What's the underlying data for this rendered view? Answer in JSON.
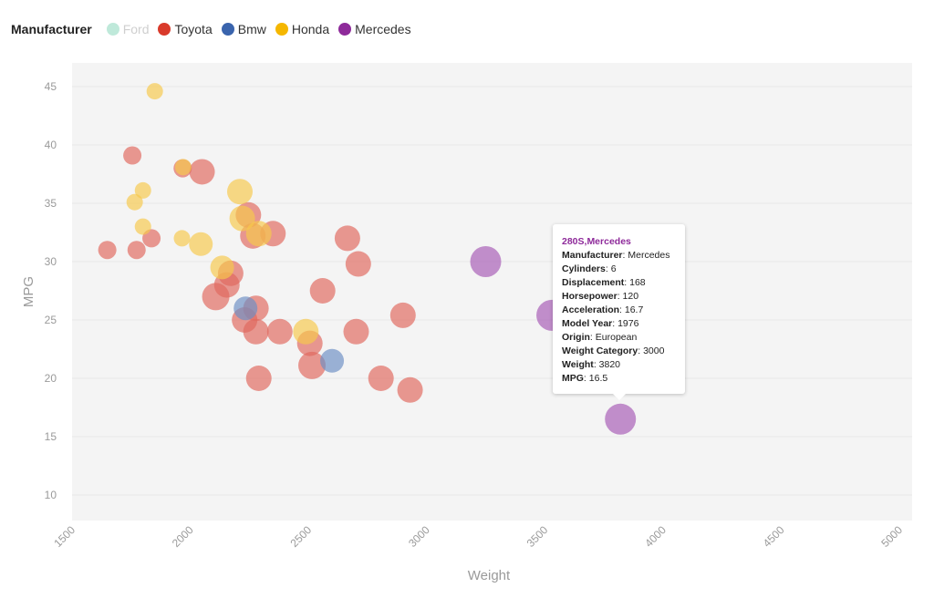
{
  "legend": {
    "title": "Manufacturer",
    "items": [
      {
        "label": "Ford",
        "color": "#bfe9da",
        "active": false
      },
      {
        "label": "Toyota",
        "color": "#d93a2b",
        "active": true
      },
      {
        "label": "Bmw",
        "color": "#3a64ad",
        "active": true
      },
      {
        "label": "Honda",
        "color": "#f5b700",
        "active": true
      },
      {
        "label": "Mercedes",
        "color": "#8e2a9a",
        "active": true
      }
    ]
  },
  "chart_data": {
    "type": "scatter",
    "xlabel": "Weight",
    "ylabel": "MPG",
    "xlim": [
      1500,
      5000
    ],
    "ylim": [
      8,
      47
    ],
    "xticks": [
      1500,
      2000,
      2500,
      3000,
      3500,
      4000,
      4500,
      5000
    ],
    "yticks": [
      10,
      15,
      20,
      25,
      30,
      35,
      40,
      45
    ],
    "grid": true,
    "series": [
      {
        "name": "Toyota",
        "color": "#e0685e",
        "points": [
          {
            "x": 1649,
            "y": 31,
            "r": 10
          },
          {
            "x": 1755,
            "y": 39.1,
            "r": 10
          },
          {
            "x": 1773,
            "y": 31,
            "r": 10
          },
          {
            "x": 1836,
            "y": 32,
            "r": 10
          },
          {
            "x": 1968,
            "y": 38,
            "r": 10
          },
          {
            "x": 2050,
            "y": 37.7,
            "r": 14
          },
          {
            "x": 2108,
            "y": 27,
            "r": 15
          },
          {
            "x": 2155,
            "y": 28,
            "r": 14
          },
          {
            "x": 2171,
            "y": 29,
            "r": 14
          },
          {
            "x": 2230,
            "y": 25,
            "r": 14
          },
          {
            "x": 2246,
            "y": 34,
            "r": 14
          },
          {
            "x": 2265,
            "y": 32.2,
            "r": 14
          },
          {
            "x": 2278,
            "y": 24,
            "r": 14
          },
          {
            "x": 2278,
            "y": 26,
            "r": 14
          },
          {
            "x": 2290,
            "y": 20,
            "r": 14
          },
          {
            "x": 2350,
            "y": 32.4,
            "r": 14
          },
          {
            "x": 2379,
            "y": 24,
            "r": 14
          },
          {
            "x": 2506,
            "y": 23,
            "r": 14
          },
          {
            "x": 2515,
            "y": 21.1,
            "r": 15
          },
          {
            "x": 2560,
            "y": 27.5,
            "r": 14
          },
          {
            "x": 2665,
            "y": 32,
            "r": 14
          },
          {
            "x": 2702,
            "y": 24,
            "r": 14
          },
          {
            "x": 2711,
            "y": 29.8,
            "r": 14
          },
          {
            "x": 2807,
            "y": 20,
            "r": 14
          },
          {
            "x": 2900,
            "y": 25.4,
            "r": 14
          },
          {
            "x": 2930,
            "y": 19,
            "r": 14
          }
        ]
      },
      {
        "name": "Bmw",
        "color": "#6d8fc4",
        "points": [
          {
            "x": 2234,
            "y": 26,
            "r": 13
          },
          {
            "x": 2600,
            "y": 21.5,
            "r": 13
          }
        ]
      },
      {
        "name": "Honda",
        "color": "#f6c84c",
        "points": [
          {
            "x": 1800,
            "y": 33,
            "r": 9
          },
          {
            "x": 1765,
            "y": 35.1,
            "r": 9
          },
          {
            "x": 1800,
            "y": 36.1,
            "r": 9
          },
          {
            "x": 1850,
            "y": 44.6,
            "r": 9
          },
          {
            "x": 1965,
            "y": 32,
            "r": 9
          },
          {
            "x": 1970,
            "y": 38.1,
            "r": 9
          },
          {
            "x": 2045,
            "y": 31.5,
            "r": 13
          },
          {
            "x": 2135,
            "y": 29.5,
            "r": 13
          },
          {
            "x": 2210,
            "y": 36,
            "r": 14
          },
          {
            "x": 2220,
            "y": 33.7,
            "r": 14
          },
          {
            "x": 2290,
            "y": 32.4,
            "r": 14
          },
          {
            "x": 2489,
            "y": 24,
            "r": 14
          }
        ]
      },
      {
        "name": "Mercedes",
        "color": "#a65cb6",
        "points": [
          {
            "x": 3250,
            "y": 30,
            "r": 17
          },
          {
            "x": 3530,
            "y": 25.4,
            "r": 17
          },
          {
            "x": 3820,
            "y": 16.5,
            "r": 17
          }
        ]
      }
    ]
  },
  "tooltip": {
    "title": "280S,Mercedes",
    "rows": [
      {
        "label": "Manufacturer",
        "value": "Mercedes"
      },
      {
        "label": "Cylinders",
        "value": "6"
      },
      {
        "label": "Displacement",
        "value": "168"
      },
      {
        "label": "Horsepower",
        "value": "120"
      },
      {
        "label": "Acceleration",
        "value": "16.7"
      },
      {
        "label": "Model Year",
        "value": "1976"
      },
      {
        "label": "Origin",
        "value": "European"
      },
      {
        "label": "Weight Category",
        "value": "3000"
      },
      {
        "label": "Weight",
        "value": "3820"
      },
      {
        "label": "MPG",
        "value": "16.5"
      }
    ]
  }
}
